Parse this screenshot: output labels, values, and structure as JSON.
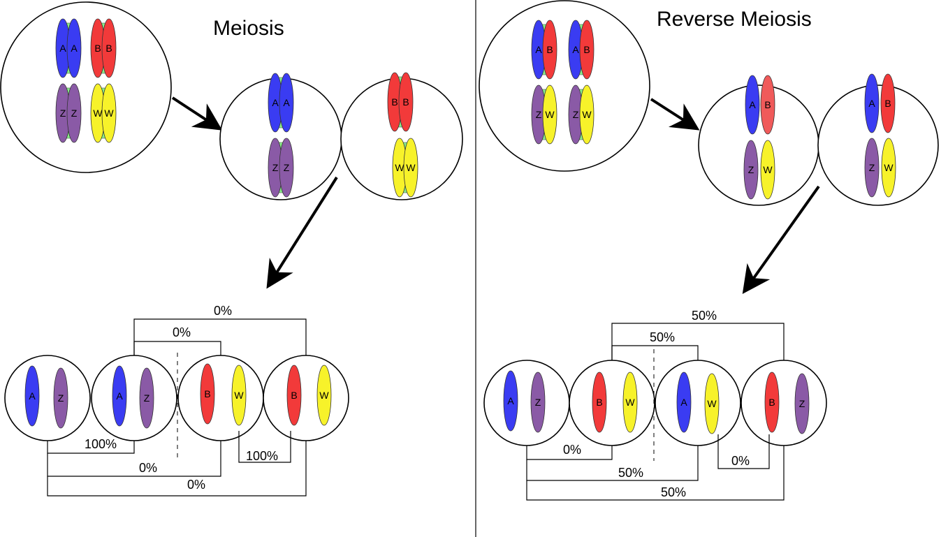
{
  "colors": {
    "A": "#3a3cf2",
    "B": "#f23a3a",
    "B_light": "#f05a5a",
    "Z": "#8a5aa6",
    "W": "#f7f22a",
    "cohesin": "#8aee8a",
    "ink": "#000000"
  },
  "meiosis": {
    "title": "Meiosis",
    "labels": {
      "A": "A",
      "B": "B",
      "Z": "Z",
      "W": "W"
    },
    "top_percent": "0%",
    "second_percent": "0%",
    "pair_left_percent": "100%",
    "pair_right_percent": "100%",
    "bottom_mid_percent": "0%",
    "bottom_outer_percent": "0%"
  },
  "reverse": {
    "title": "Reverse Meiosis",
    "top_percent": "50%",
    "second_percent": "50%",
    "pair_left_percent": "0%",
    "pair_right_percent": "0%",
    "bottom_mid_percent": "50%",
    "bottom_outer_percent": "50%"
  }
}
